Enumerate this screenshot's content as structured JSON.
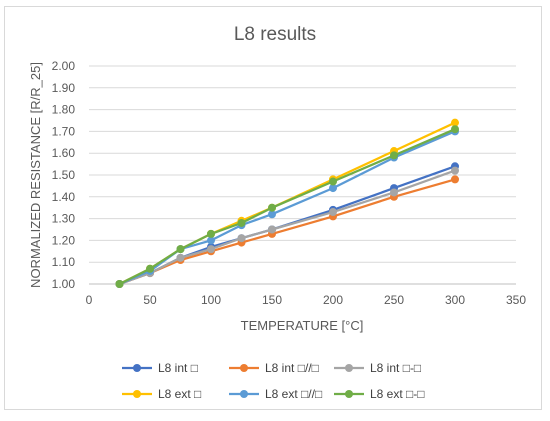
{
  "chart_data": {
    "type": "line",
    "title": "L8 results",
    "xlabel": "TEMPERATURE [°C]",
    "ylabel": "NORMALIZED RESISTANCE [R/R_25]",
    "xlim": [
      0,
      350
    ],
    "ylim": [
      1.0,
      2.0
    ],
    "x_ticks": [
      "0",
      "50",
      "100",
      "150",
      "200",
      "250",
      "300",
      "350"
    ],
    "y_ticks": [
      "1.00",
      "1.10",
      "1.20",
      "1.30",
      "1.40",
      "1.50",
      "1.60",
      "1.70",
      "1.80",
      "1.90",
      "2.00"
    ],
    "grid": "horizontal",
    "legend_position": "bottom",
    "x": [
      25,
      50,
      75,
      100,
      125,
      150,
      200,
      250,
      300
    ],
    "series": [
      {
        "name": "L8 int □",
        "color": "#4472c4",
        "values": [
          1.0,
          1.05,
          1.12,
          1.17,
          1.21,
          1.25,
          1.34,
          1.44,
          1.54
        ]
      },
      {
        "name": "L8 int □//□",
        "color": "#ed7d31",
        "values": [
          1.0,
          1.05,
          1.11,
          1.15,
          1.19,
          1.23,
          1.31,
          1.4,
          1.48
        ]
      },
      {
        "name": "L8 int □-□",
        "color": "#a5a5a5",
        "values": [
          1.0,
          1.05,
          1.12,
          1.16,
          1.21,
          1.25,
          1.33,
          1.42,
          1.52
        ]
      },
      {
        "name": "L8 ext □",
        "color": "#ffc000",
        "values": [
          1.0,
          1.07,
          1.16,
          1.23,
          1.29,
          1.35,
          1.48,
          1.61,
          1.74
        ]
      },
      {
        "name": "L8 ext □//□",
        "color": "#5b9bd5",
        "values": [
          1.0,
          1.06,
          1.16,
          1.2,
          1.27,
          1.32,
          1.44,
          1.58,
          1.7
        ]
      },
      {
        "name": "L8 ext □-□",
        "color": "#70ad47",
        "values": [
          1.0,
          1.07,
          1.16,
          1.23,
          1.28,
          1.35,
          1.47,
          1.59,
          1.71
        ]
      }
    ]
  }
}
